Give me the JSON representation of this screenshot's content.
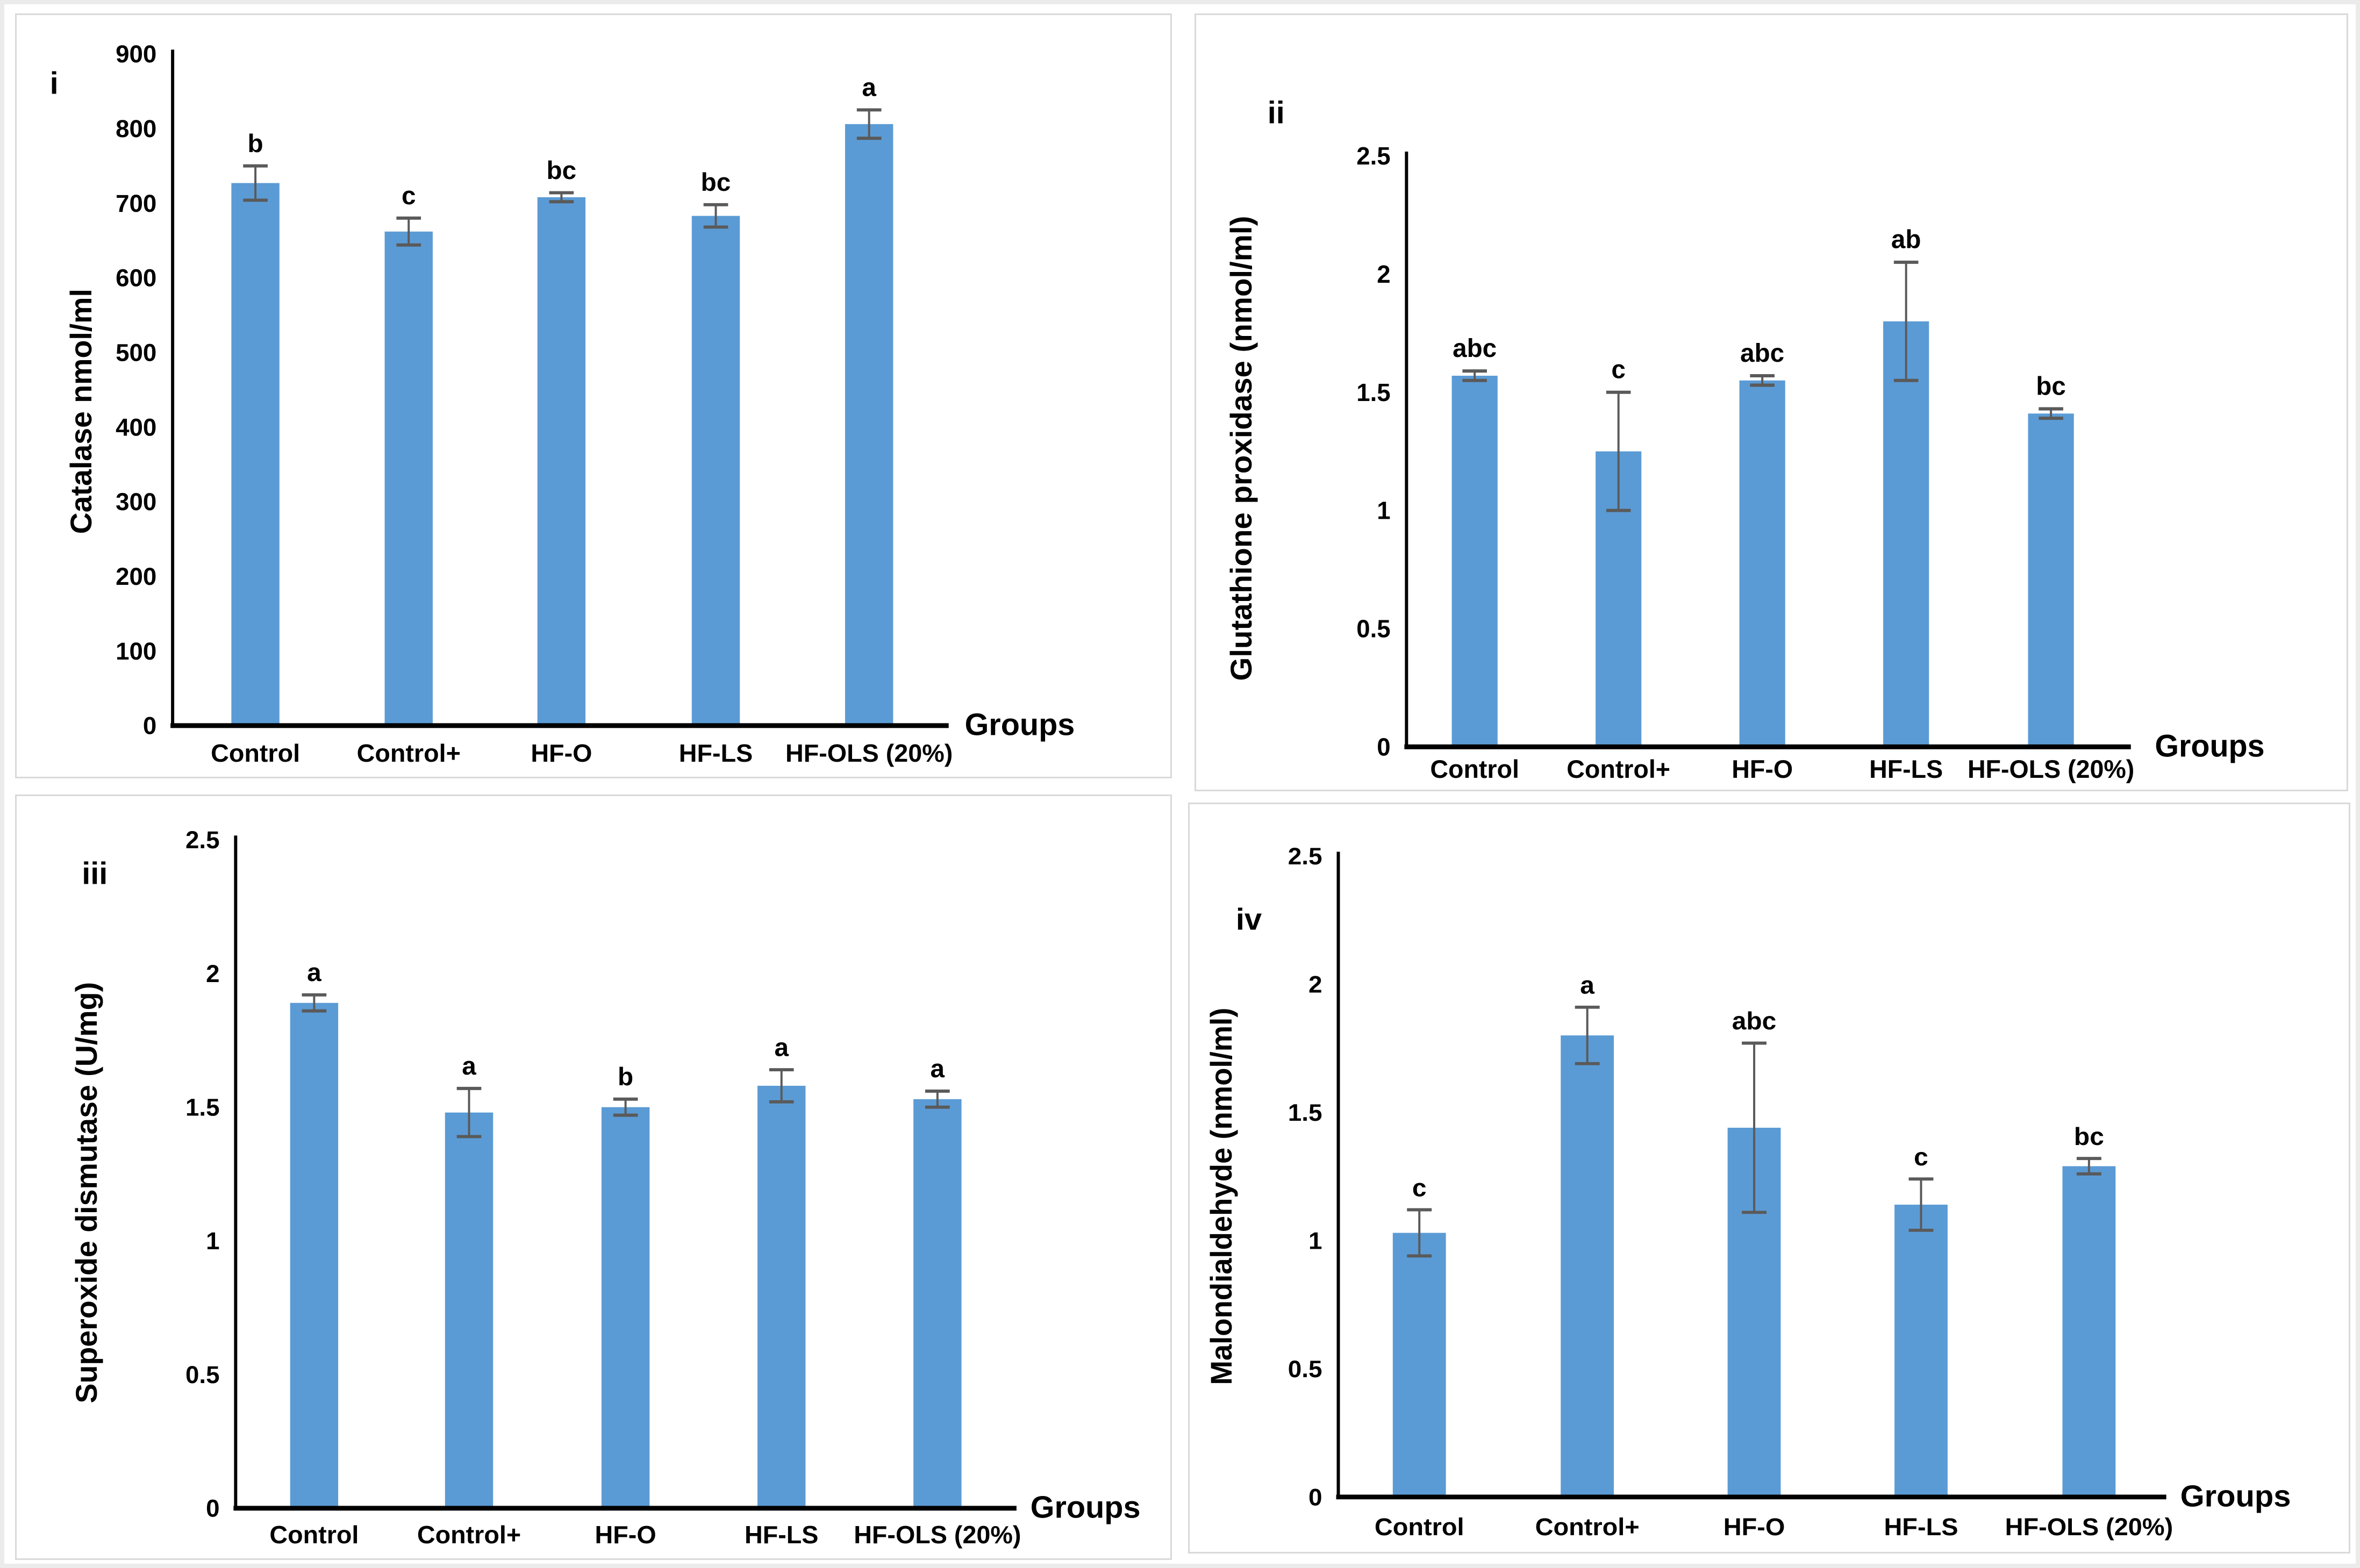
{
  "figure": {
    "bar_color": "#5B9BD5",
    "error_bar_color": "#5a5a5a",
    "axis_color": "#000000",
    "panel_border_color": "#d9d9d9",
    "background_color": "#ffffff"
  },
  "chart_data": [
    {
      "type": "bar",
      "panel_label": "i",
      "ylabel": "Catalase nmol/ml",
      "xlabel": "Groups",
      "ylim": [
        0,
        900
      ],
      "ytick_step": 100,
      "ytick_labels": [
        "0",
        "100",
        "200",
        "300",
        "400",
        "500",
        "600",
        "700",
        "800",
        "900"
      ],
      "categories": [
        "Control",
        "Control+",
        "HF-O",
        "HF-LS",
        "HF-OLS (20%)"
      ],
      "values": [
        727,
        662,
        708,
        683,
        806
      ],
      "errors": [
        23,
        18,
        6,
        15,
        19
      ],
      "sig_letters": [
        "b",
        "c",
        "bc",
        "bc",
        "a"
      ],
      "grid": false,
      "legend_position": "none"
    },
    {
      "type": "bar",
      "panel_label": "ii",
      "ylabel": "Glutathione proxidase (nmol/ml)",
      "xlabel": "Groups",
      "ylim": [
        0,
        2.5
      ],
      "ytick_step": 0.5,
      "ytick_labels": [
        "0",
        "0.5",
        "1",
        "1.5",
        "2",
        "2.5"
      ],
      "categories": [
        "Control",
        "Control+",
        "HF-O",
        "HF-LS",
        "HF-OLS (20%)"
      ],
      "values": [
        1.57,
        1.25,
        1.55,
        1.8,
        1.41
      ],
      "errors": [
        0.02,
        0.25,
        0.02,
        0.25,
        0.02
      ],
      "sig_letters": [
        "abc",
        "c",
        "abc",
        "ab",
        "bc"
      ],
      "grid": false,
      "legend_position": "none"
    },
    {
      "type": "bar",
      "panel_label": "iii",
      "ylabel": "Superoxide dismutase (U/mg)",
      "xlabel": "Groups",
      "ylim": [
        0,
        2.5
      ],
      "ytick_step": 0.5,
      "ytick_labels": [
        "0",
        "0.5",
        "1",
        "1.5",
        "2",
        "2.5"
      ],
      "categories": [
        "Control",
        "Control+",
        "HF-O",
        "HF-LS",
        "HF-OLS (20%)"
      ],
      "values": [
        1.89,
        1.48,
        1.5,
        1.58,
        1.53
      ],
      "errors": [
        0.03,
        0.09,
        0.03,
        0.06,
        0.03
      ],
      "sig_letters": [
        "a",
        "a",
        "b",
        "a",
        "a"
      ],
      "grid": false,
      "legend_position": "none"
    },
    {
      "type": "bar",
      "panel_label": "iv",
      "ylabel": "Malondialdehyde (nmol/ml)",
      "xlabel": "Groups",
      "ylim": [
        0,
        2.5
      ],
      "ytick_step": 0.5,
      "ytick_labels": [
        "0",
        "0.5",
        "1",
        "1.5",
        "2",
        "2.5"
      ],
      "categories": [
        "Control",
        "Control+",
        "HF-O",
        "HF-LS",
        "HF-OLS (20%)"
      ],
      "values": [
        1.03,
        1.8,
        1.44,
        1.14,
        1.29
      ],
      "errors": [
        0.09,
        0.11,
        0.33,
        0.1,
        0.03
      ],
      "sig_letters": [
        "c",
        "a",
        "abc",
        "c",
        "bc"
      ],
      "grid": false,
      "legend_position": "none"
    }
  ]
}
